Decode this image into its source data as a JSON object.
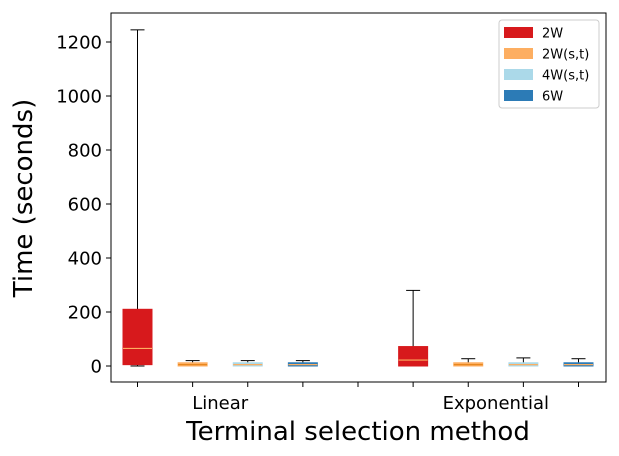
{
  "chart_data": {
    "type": "box",
    "xlabel": "Terminal selection method",
    "ylabel": "Time (seconds)",
    "ylim": [
      -60,
      1290
    ],
    "yticks": [
      0,
      200,
      400,
      600,
      800,
      1000,
      1200
    ],
    "groups": [
      "Linear",
      "Exponential"
    ],
    "legend_position": "top-right",
    "series": [
      {
        "name": "2W",
        "color": "#d7191c",
        "median_color": "#fdae61",
        "boxes": [
          {
            "group": "Linear",
            "min": 0,
            "q1": 5,
            "median": 65,
            "q3": 210,
            "max": 1245
          },
          {
            "group": "Exponential",
            "min": 0,
            "q1": 0,
            "median": 22,
            "q3": 72,
            "max": 280
          }
        ]
      },
      {
        "name": "2W(s,t)",
        "color": "#fdae61",
        "median_color": "#e8871e",
        "boxes": [
          {
            "group": "Linear",
            "min": 0,
            "q1": 0,
            "median": 5,
            "q3": 12,
            "max": 20
          },
          {
            "group": "Exponential",
            "min": 0,
            "q1": 0,
            "median": 5,
            "q3": 12,
            "max": 27
          }
        ]
      },
      {
        "name": "4W(s,t)",
        "color": "#abd9e9",
        "median_color": "#fdae61",
        "boxes": [
          {
            "group": "Linear",
            "min": 0,
            "q1": 0,
            "median": 5,
            "q3": 12,
            "max": 20
          },
          {
            "group": "Exponential",
            "min": 0,
            "q1": 0,
            "median": 5,
            "q3": 12,
            "max": 30
          }
        ]
      },
      {
        "name": "6W",
        "color": "#2c7bb6",
        "median_color": "#fdae61",
        "boxes": [
          {
            "group": "Linear",
            "min": 0,
            "q1": 0,
            "median": 5,
            "q3": 12,
            "max": 20
          },
          {
            "group": "Exponential",
            "min": 0,
            "q1": 0,
            "median": 5,
            "q3": 12,
            "max": 27
          }
        ]
      }
    ]
  }
}
